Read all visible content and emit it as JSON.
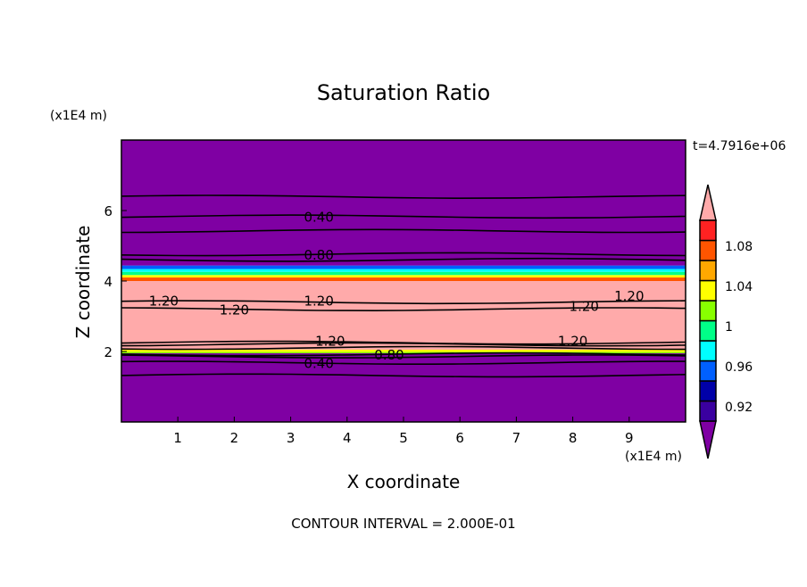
{
  "chart_data": {
    "type": "contour",
    "title": "Saturation Ratio",
    "xlabel": "X coordinate",
    "ylabel": "Z coordinate",
    "x_unit": "(x1E4 m)",
    "y_unit": "(x1E4 m)",
    "xlim": [
      0,
      10
    ],
    "ylim": [
      0,
      8
    ],
    "x_ticks": [
      1,
      2,
      3,
      4,
      5,
      6,
      7,
      8,
      9
    ],
    "y_ticks": [
      2,
      4,
      6
    ],
    "time_label": "t=4.7916e+06",
    "footer": "CONTOUR INTERVAL = 2.000E-01",
    "colorbar": {
      "levels": [
        0.9,
        0.92,
        0.94,
        0.96,
        0.98,
        1.0,
        1.02,
        1.04,
        1.06,
        1.08,
        1.1
      ],
      "labels": [
        "0.92",
        "0.96",
        "1",
        "1.04",
        "1.08"
      ],
      "label_values": [
        0.92,
        0.96,
        1.0,
        1.04,
        1.08
      ],
      "under_color": "#7f00a3",
      "over_color": "#ffaaaa",
      "colors": [
        "#3a00a0",
        "#0000a8",
        "#0060ff",
        "#00ffff",
        "#00ff88",
        "#88ff00",
        "#ffff00",
        "#ffa800",
        "#ff5500",
        "#ff2222"
      ]
    },
    "fill_bands": [
      {
        "z": [
          0,
          1.95
        ],
        "color": "#7f00a3"
      },
      {
        "z": [
          1.95,
          1.99
        ],
        "color": "#88ff00"
      },
      {
        "z": [
          1.99,
          2.05
        ],
        "color": "#ffff00"
      },
      {
        "z": [
          2.05,
          4.0
        ],
        "color": "#ffaaaa"
      },
      {
        "z": [
          4.0,
          4.1
        ],
        "color": "#ff5500"
      },
      {
        "z": [
          4.1,
          4.17
        ],
        "color": "#ffff00"
      },
      {
        "z": [
          4.17,
          4.26
        ],
        "color": "#00ff88"
      },
      {
        "z": [
          4.26,
          4.34
        ],
        "color": "#00ffff"
      },
      {
        "z": [
          4.34,
          4.44
        ],
        "color": "#0060ff"
      },
      {
        "z": [
          4.44,
          8
        ],
        "color": "#7f00a3"
      }
    ],
    "contour_lines": [
      1.32,
      1.68,
      1.86,
      1.92,
      2.1,
      2.2,
      2.25,
      3.4,
      3.2,
      4.6,
      4.76,
      5.42,
      5.83,
      6.39
    ],
    "contour_labels": [
      {
        "text": "0.40",
        "x": 3.5,
        "z": 5.83
      },
      {
        "text": "0.80",
        "x": 3.5,
        "z": 4.76
      },
      {
        "text": "1.20",
        "x": 0.75,
        "z": 3.45
      },
      {
        "text": "1.20",
        "x": 2.0,
        "z": 3.2
      },
      {
        "text": "1.20",
        "x": 3.5,
        "z": 3.45
      },
      {
        "text": "1.20",
        "x": 8.2,
        "z": 3.3
      },
      {
        "text": "1.20",
        "x": 9.0,
        "z": 3.6
      },
      {
        "text": "1.20",
        "x": 3.7,
        "z": 2.32
      },
      {
        "text": "1.20",
        "x": 8.0,
        "z": 2.32
      },
      {
        "text": "0.80",
        "x": 3.5,
        "z": 1.92
      },
      {
        "text": "0.40",
        "x": 3.5,
        "z": 1.68
      }
    ]
  }
}
